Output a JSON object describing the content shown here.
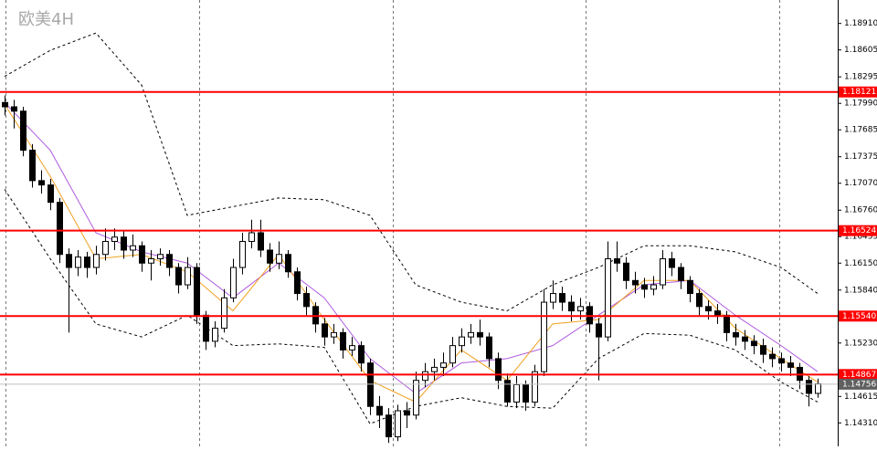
{
  "chart_data": {
    "type": "candlestick",
    "title": "欧美4H",
    "ylim": [
      1.1404,
      1.1918
    ],
    "yticks": [
      {
        "value": 1.1891,
        "label": "1.18910"
      },
      1.18605,
      1.18295,
      {
        "value": 1.1799,
        "label": "1.17990"
      },
      1.17685,
      1.17375,
      {
        "value": 1.1707,
        "label": "1.17070"
      },
      {
        "value": 1.1676,
        "label": "1.16760"
      },
      1.16455,
      {
        "value": 1.1615,
        "label": "1.16150"
      },
      {
        "value": 1.1584,
        "label": "1.15840"
      },
      {
        "value": 1.1523,
        "label": "1.15230"
      },
      1.14615,
      {
        "value": 1.1431,
        "label": "1.14310"
      }
    ],
    "open": [
      1.18,
      1.1795,
      1.179,
      1.1745,
      1.171,
      1.1705,
      1.1685,
      1.1625,
      1.161,
      1.1622,
      1.161,
      1.1625,
      1.164,
      1.1645,
      1.163,
      1.1635,
      1.1615,
      1.162,
      1.1625,
      1.161,
      1.159,
      1.161,
      1.1555,
      1.1525,
      1.154,
      1.1575,
      1.161,
      1.164,
      1.165,
      1.163,
      1.1615,
      1.1625,
      1.1605,
      1.158,
      1.1565,
      1.1545,
      1.153,
      1.1535,
      1.1515,
      1.152,
      1.15,
      1.145,
      1.144,
      1.1415,
      1.1445,
      1.144,
      1.148,
      1.149,
      1.1495,
      1.15,
      1.152,
      1.153,
      1.1535,
      1.153,
      1.1505,
      1.148,
      1.1455,
      1.1475,
      1.1455,
      1.149,
      1.157,
      1.158,
      1.157,
      1.156,
      1.1565,
      1.1545,
      1.153,
      1.162,
      1.1615,
      1.1595,
      1.159,
      1.1585,
      1.159,
      1.162,
      1.161,
      1.1595,
      1.158,
      1.1565,
      1.156,
      1.1555,
      1.1535,
      1.153,
      1.1525,
      1.152,
      1.151,
      1.1505,
      1.15,
      1.1495,
      1.148,
      1.1465
    ],
    "high": [
      1.1808,
      1.1803,
      1.1795,
      1.1752,
      1.1722,
      1.1712,
      1.169,
      1.1632,
      1.163,
      1.1628,
      1.1635,
      1.1655,
      1.1655,
      1.1652,
      1.1648,
      1.164,
      1.163,
      1.1632,
      1.163,
      1.1615,
      1.1622,
      1.1615,
      1.156,
      1.1548,
      1.1585,
      1.162,
      1.165,
      1.1665,
      1.1665,
      1.1638,
      1.164,
      1.163,
      1.161,
      1.1588,
      1.157,
      1.1552,
      1.1545,
      1.154,
      1.153,
      1.1525,
      1.1505,
      1.1462,
      1.1448,
      1.1452,
      1.1455,
      1.149,
      1.15,
      1.1505,
      1.1512,
      1.153,
      1.154,
      1.1545,
      1.155,
      1.1535,
      1.1512,
      1.1488,
      1.1485,
      1.148,
      1.1498,
      1.1585,
      1.1595,
      1.1588,
      1.1578,
      1.1575,
      1.157,
      1.1552,
      1.164,
      1.164,
      1.1622,
      1.1605,
      1.1598,
      1.16,
      1.163,
      1.1628,
      1.1615,
      1.16,
      1.1585,
      1.1572,
      1.1568,
      1.156,
      1.1545,
      1.1538,
      1.1532,
      1.1528,
      1.1518,
      1.1512,
      1.1508,
      1.15,
      1.1485,
      1.1482
    ],
    "low": [
      1.1785,
      1.177,
      1.1738,
      1.1702,
      1.1695,
      1.1676,
      1.1615,
      1.1535,
      1.16,
      1.1598,
      1.1602,
      1.1618,
      1.163,
      1.162,
      1.1622,
      1.1605,
      1.1595,
      1.1612,
      1.16,
      1.158,
      1.1585,
      1.1545,
      1.1515,
      1.1518,
      1.1535,
      1.157,
      1.1602,
      1.1632,
      1.1622,
      1.1605,
      1.1608,
      1.1598,
      1.1572,
      1.1555,
      1.1535,
      1.152,
      1.1522,
      1.1505,
      1.1508,
      1.149,
      1.144,
      1.1425,
      1.1408,
      1.141,
      1.1425,
      1.1435,
      1.1472,
      1.148,
      1.1485,
      1.1495,
      1.1512,
      1.1522,
      1.152,
      1.1495,
      1.147,
      1.145,
      1.1448,
      1.1445,
      1.145,
      1.1485,
      1.1562,
      1.156,
      1.1548,
      1.155,
      1.1535,
      1.148,
      1.1525,
      1.1605,
      1.1585,
      1.158,
      1.1575,
      1.1578,
      1.1585,
      1.16,
      1.1585,
      1.157,
      1.1555,
      1.155,
      1.1545,
      1.1525,
      1.152,
      1.1515,
      1.151,
      1.15,
      1.1495,
      1.149,
      1.1485,
      1.147,
      1.145,
      1.146
    ],
    "close": [
      1.1795,
      1.179,
      1.1745,
      1.171,
      1.1705,
      1.1685,
      1.1625,
      1.161,
      1.1622,
      1.161,
      1.1625,
      1.164,
      1.1645,
      1.163,
      1.1635,
      1.1615,
      1.162,
      1.1625,
      1.161,
      1.159,
      1.161,
      1.1555,
      1.1525,
      1.154,
      1.1575,
      1.161,
      1.164,
      1.165,
      1.163,
      1.1615,
      1.1625,
      1.1605,
      1.158,
      1.1565,
      1.1545,
      1.153,
      1.1535,
      1.1515,
      1.152,
      1.15,
      1.145,
      1.144,
      1.1415,
      1.1445,
      1.144,
      1.148,
      1.149,
      1.1495,
      1.15,
      1.152,
      1.153,
      1.1535,
      1.153,
      1.1505,
      1.148,
      1.1455,
      1.1475,
      1.1455,
      1.149,
      1.157,
      1.158,
      1.157,
      1.156,
      1.1565,
      1.1545,
      1.153,
      1.162,
      1.1615,
      1.1595,
      1.159,
      1.1585,
      1.159,
      1.162,
      1.161,
      1.1595,
      1.158,
      1.1565,
      1.156,
      1.1555,
      1.1535,
      1.153,
      1.1525,
      1.152,
      1.151,
      1.1505,
      1.15,
      1.1495,
      1.148,
      1.1465,
      1.1476
    ],
    "overlays": [
      {
        "color": "#000000",
        "dash": true,
        "x": [
          0,
          5,
          10,
          15,
          20,
          25,
          30,
          35,
          40,
          45,
          50,
          55,
          60,
          65,
          70,
          75,
          80,
          85,
          89
        ],
        "values": [
          1.183,
          1.186,
          1.188,
          1.182,
          1.167,
          1.168,
          1.169,
          1.1688,
          1.167,
          1.159,
          1.157,
          1.156,
          1.159,
          1.161,
          1.1635,
          1.1635,
          1.1628,
          1.161,
          1.158
        ]
      },
      {
        "color": "#000000",
        "dash": true,
        "x": [
          0,
          5,
          10,
          15,
          20,
          25,
          30,
          35,
          40,
          45,
          50,
          55,
          60,
          65,
          70,
          75,
          80,
          85,
          89
        ],
        "values": [
          1.17,
          1.162,
          1.1545,
          1.153,
          1.1555,
          1.152,
          1.1522,
          1.1518,
          1.143,
          1.145,
          1.146,
          1.145,
          1.1448,
          1.1505,
          1.1534,
          1.1532,
          1.1515,
          1.1478,
          1.1455
        ]
      },
      {
        "color": "#b05ce0",
        "dash": false,
        "x": [
          0,
          5,
          10,
          15,
          20,
          25,
          30,
          35,
          40,
          45,
          50,
          55,
          60,
          65,
          70,
          75,
          80,
          85,
          89
        ],
        "values": [
          1.18,
          1.1745,
          1.165,
          1.1628,
          1.1615,
          1.1575,
          1.1615,
          1.1575,
          1.1505,
          1.1465,
          1.15,
          1.1505,
          1.152,
          1.1555,
          1.159,
          1.1595,
          1.1555,
          1.152,
          1.149
        ]
      },
      {
        "color": "#f0a020",
        "dash": false,
        "x": [
          0,
          5,
          10,
          15,
          20,
          25,
          30,
          35,
          40,
          45,
          50,
          55,
          60,
          65,
          70,
          75,
          80,
          85,
          89
        ],
        "values": [
          1.1798,
          1.1715,
          1.162,
          1.1625,
          1.1605,
          1.156,
          1.1625,
          1.155,
          1.148,
          1.1455,
          1.1515,
          1.148,
          1.1545,
          1.155,
          1.1595,
          1.1595,
          1.154,
          1.1505,
          1.1478
        ]
      }
    ],
    "levels": [
      {
        "value": 1.18121,
        "color": "#ff0000",
        "label_color": "#ff0000"
      },
      {
        "value": 1.16524,
        "color": "#ff0000",
        "label_color": "#ff0000"
      },
      {
        "value": 1.1554,
        "label": "1.15540",
        "color": "#ff0000",
        "label_color": "#ff0000"
      },
      {
        "value": 1.14867,
        "color": "#ff0000",
        "label_color": "#ff0000"
      },
      {
        "value": 1.14756,
        "color": "#c0c0c0",
        "label_color": "#606060"
      }
    ],
    "up_color": "#ffffff",
    "down_color": "#000000"
  }
}
